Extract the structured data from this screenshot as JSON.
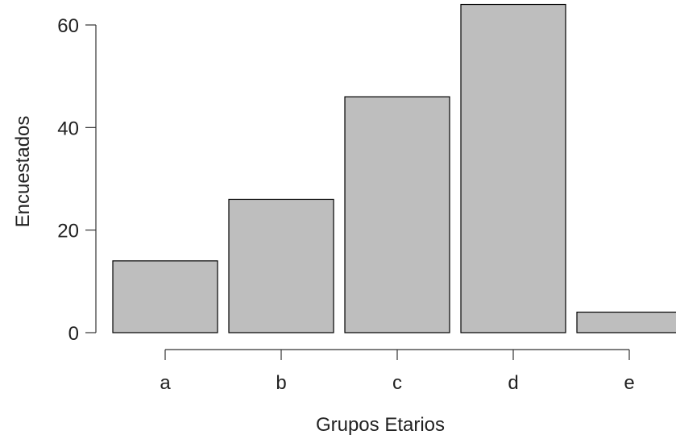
{
  "chart_data": {
    "type": "bar",
    "categories": [
      "a",
      "b",
      "c",
      "d",
      "e"
    ],
    "values": [
      14,
      26,
      46,
      64,
      4
    ],
    "xlabel": "Grupos Etarios",
    "ylabel": "Encuestados",
    "ylim": [
      0,
      60
    ],
    "yticks": [
      0,
      20,
      40,
      60
    ],
    "bar_color": "#bebebe",
    "bar_edge_color": "#000000",
    "grid": false,
    "legend": "none"
  }
}
